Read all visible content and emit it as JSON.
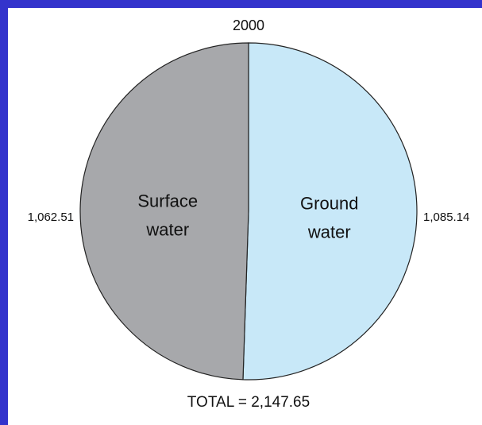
{
  "chart_data": {
    "type": "pie",
    "title": "2000",
    "total_label": "TOTAL = 2,147.65",
    "slices": [
      {
        "label_line1": "Ground",
        "label_line2": "water",
        "value": 1085.14,
        "value_label": "1,085.14",
        "color": "#c8e8f8"
      },
      {
        "label_line1": "Surface",
        "label_line2": "water",
        "value": 1062.51,
        "value_label": "1,062.51",
        "color": "#a7a8ab"
      }
    ],
    "start_angle_deg": 0,
    "direction": "clockwise"
  },
  "colors": {
    "frame": "#3333cc",
    "background": "#ffffff",
    "outline": "#222222"
  }
}
